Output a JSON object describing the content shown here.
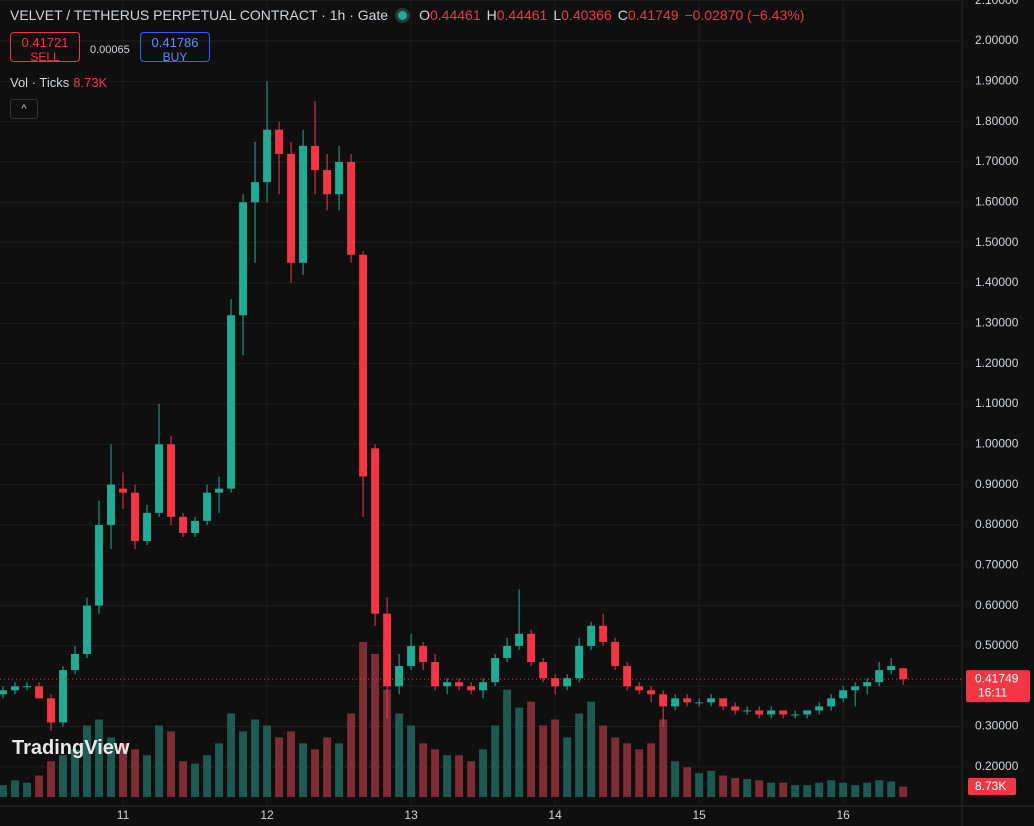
{
  "header": {
    "title": "VELVET / TETHERUS PERPETUAL CONTRACT · 1h · Gate",
    "open_label": "O",
    "open": 0.44461,
    "high_label": "H",
    "high": 0.44461,
    "low_label": "L",
    "low": 0.40366,
    "close_label": "C",
    "close": 0.41749,
    "change": "−0.02870 (−6.43%)"
  },
  "trade": {
    "sell_price": 0.41721,
    "sell_label": "SELL",
    "spread": 0.00065,
    "buy_price": 0.41786,
    "buy_label": "BUY"
  },
  "indicator": {
    "name": "Vol · Ticks",
    "value": "8.73K"
  },
  "branding": "TradingView",
  "chart_data": {
    "type": "candlestick",
    "up_color": "#22ab94",
    "down_color": "#f23645",
    "volume_up_color": "#1d5a52",
    "volume_down_color": "#7d2d33",
    "grid": true,
    "countdown": "16:11",
    "candles": [
      [
        0.38,
        0.4,
        0.37,
        0.39
      ],
      [
        0.39,
        0.41,
        0.38,
        0.4
      ],
      [
        0.4,
        0.41,
        0.39,
        0.4
      ],
      [
        0.4,
        0.41,
        0.37,
        0.37
      ],
      [
        0.37,
        0.38,
        0.29,
        0.31
      ],
      [
        0.31,
        0.45,
        0.3,
        0.44
      ],
      [
        0.44,
        0.5,
        0.43,
        0.48
      ],
      [
        0.48,
        0.62,
        0.47,
        0.6
      ],
      [
        0.6,
        0.86,
        0.58,
        0.8
      ],
      [
        0.8,
        1.0,
        0.74,
        0.9
      ],
      [
        0.89,
        0.93,
        0.84,
        0.88
      ],
      [
        0.88,
        0.9,
        0.74,
        0.76
      ],
      [
        0.76,
        0.85,
        0.75,
        0.83
      ],
      [
        0.83,
        1.1,
        0.82,
        1.0
      ],
      [
        1.0,
        1.02,
        0.8,
        0.82
      ],
      [
        0.82,
        0.83,
        0.77,
        0.78
      ],
      [
        0.78,
        0.82,
        0.77,
        0.81
      ],
      [
        0.81,
        0.9,
        0.8,
        0.88
      ],
      [
        0.88,
        0.92,
        0.83,
        0.89
      ],
      [
        0.89,
        1.36,
        0.88,
        1.32
      ],
      [
        1.32,
        1.62,
        1.22,
        1.6
      ],
      [
        1.6,
        1.75,
        1.45,
        1.65
      ],
      [
        1.65,
        1.9,
        1.6,
        1.78
      ],
      [
        1.78,
        1.8,
        1.62,
        1.72
      ],
      [
        1.72,
        1.75,
        1.4,
        1.45
      ],
      [
        1.45,
        1.78,
        1.42,
        1.74
      ],
      [
        1.74,
        1.85,
        1.62,
        1.68
      ],
      [
        1.68,
        1.72,
        1.58,
        1.62
      ],
      [
        1.62,
        1.74,
        1.58,
        1.7
      ],
      [
        1.7,
        1.72,
        1.45,
        1.47
      ],
      [
        1.47,
        1.48,
        0.82,
        0.92
      ],
      [
        0.99,
        1.0,
        0.55,
        0.58
      ],
      [
        0.58,
        0.62,
        0.32,
        0.4
      ],
      [
        0.4,
        0.48,
        0.38,
        0.45
      ],
      [
        0.45,
        0.53,
        0.44,
        0.5
      ],
      [
        0.5,
        0.51,
        0.44,
        0.46
      ],
      [
        0.46,
        0.48,
        0.39,
        0.4
      ],
      [
        0.4,
        0.42,
        0.38,
        0.41
      ],
      [
        0.41,
        0.42,
        0.39,
        0.4
      ],
      [
        0.4,
        0.41,
        0.38,
        0.39
      ],
      [
        0.39,
        0.42,
        0.37,
        0.41
      ],
      [
        0.41,
        0.48,
        0.4,
        0.47
      ],
      [
        0.47,
        0.52,
        0.46,
        0.5
      ],
      [
        0.5,
        0.64,
        0.49,
        0.53
      ],
      [
        0.53,
        0.54,
        0.45,
        0.46
      ],
      [
        0.46,
        0.47,
        0.41,
        0.42
      ],
      [
        0.42,
        0.43,
        0.38,
        0.4
      ],
      [
        0.4,
        0.43,
        0.39,
        0.42
      ],
      [
        0.42,
        0.52,
        0.41,
        0.5
      ],
      [
        0.5,
        0.56,
        0.49,
        0.55
      ],
      [
        0.55,
        0.58,
        0.5,
        0.51
      ],
      [
        0.51,
        0.52,
        0.44,
        0.45
      ],
      [
        0.45,
        0.46,
        0.39,
        0.4
      ],
      [
        0.4,
        0.41,
        0.38,
        0.39
      ],
      [
        0.39,
        0.4,
        0.36,
        0.38
      ],
      [
        0.38,
        0.39,
        0.3,
        0.35
      ],
      [
        0.35,
        0.38,
        0.34,
        0.37
      ],
      [
        0.37,
        0.38,
        0.35,
        0.36
      ],
      [
        0.36,
        0.37,
        0.35,
        0.36
      ],
      [
        0.36,
        0.38,
        0.35,
        0.37
      ],
      [
        0.37,
        0.37,
        0.34,
        0.35
      ],
      [
        0.35,
        0.36,
        0.33,
        0.34
      ],
      [
        0.34,
        0.35,
        0.33,
        0.34
      ],
      [
        0.34,
        0.35,
        0.32,
        0.33
      ],
      [
        0.33,
        0.35,
        0.32,
        0.34
      ],
      [
        0.34,
        0.34,
        0.32,
        0.33
      ],
      [
        0.33,
        0.34,
        0.32,
        0.33
      ],
      [
        0.33,
        0.34,
        0.32,
        0.34
      ],
      [
        0.34,
        0.36,
        0.33,
        0.35
      ],
      [
        0.35,
        0.38,
        0.34,
        0.37
      ],
      [
        0.37,
        0.4,
        0.36,
        0.39
      ],
      [
        0.39,
        0.41,
        0.35,
        0.4
      ],
      [
        0.4,
        0.42,
        0.38,
        0.41
      ],
      [
        0.41,
        0.46,
        0.4,
        0.44
      ],
      [
        0.44,
        0.47,
        0.43,
        0.45
      ],
      [
        0.44461,
        0.44461,
        0.40366,
        0.41749
      ]
    ],
    "volume": [
      10000,
      14000,
      12000,
      18000,
      30000,
      35000,
      40000,
      60000,
      65000,
      50000,
      45000,
      40000,
      35000,
      60000,
      55000,
      30000,
      28000,
      35000,
      45000,
      70000,
      55000,
      65000,
      60000,
      50000,
      55000,
      45000,
      40000,
      50000,
      45000,
      70000,
      130000,
      120000,
      90000,
      70000,
      60000,
      45000,
      40000,
      35000,
      35000,
      30000,
      40000,
      60000,
      90000,
      75000,
      80000,
      60000,
      65000,
      50000,
      70000,
      80000,
      60000,
      50000,
      45000,
      40000,
      45000,
      65000,
      30000,
      25000,
      20000,
      22000,
      18000,
      16000,
      15000,
      14000,
      12000,
      12000,
      10000,
      10000,
      12000,
      14000,
      12000,
      10000,
      12000,
      14000,
      13000,
      8730
    ],
    "xlim": [
      -0.25,
      79.9
    ],
    "xticks": [
      {
        "value": 10,
        "label": "11"
      },
      {
        "value": 22,
        "label": "12"
      },
      {
        "value": 34,
        "label": "13"
      },
      {
        "value": 46,
        "label": "14"
      },
      {
        "value": 58,
        "label": "15"
      },
      {
        "value": 70,
        "label": "16"
      }
    ],
    "ylim": [
      0.103,
      2.1017
    ],
    "yticks": [
      {
        "value": 0.2,
        "label": "0.20000"
      },
      {
        "value": 0.3,
        "label": "0.30000"
      },
      {
        "value": 0.4,
        "label": "0.40000"
      },
      {
        "value": 0.5,
        "label": "0.50000"
      },
      {
        "value": 0.6,
        "label": "0.60000"
      },
      {
        "value": 0.7,
        "label": "0.70000"
      },
      {
        "value": 0.8,
        "label": "0.80000"
      },
      {
        "value": 0.9,
        "label": "0.90000"
      },
      {
        "value": 1.0,
        "label": "1.00000"
      },
      {
        "value": 1.1,
        "label": "1.10000"
      },
      {
        "value": 1.2,
        "label": "1.20000"
      },
      {
        "value": 1.3,
        "label": "1.30000"
      },
      {
        "value": 1.4,
        "label": "1.40000"
      },
      {
        "value": 1.5,
        "label": "1.50000"
      },
      {
        "value": 1.6,
        "label": "1.60000"
      },
      {
        "value": 1.7,
        "label": "1.70000"
      },
      {
        "value": 1.8,
        "label": "1.80000"
      },
      {
        "value": 1.9,
        "label": "1.90000"
      },
      {
        "value": 2.0,
        "label": "2.00000"
      },
      {
        "value": 2.1,
        "label": "2.10000"
      }
    ]
  }
}
